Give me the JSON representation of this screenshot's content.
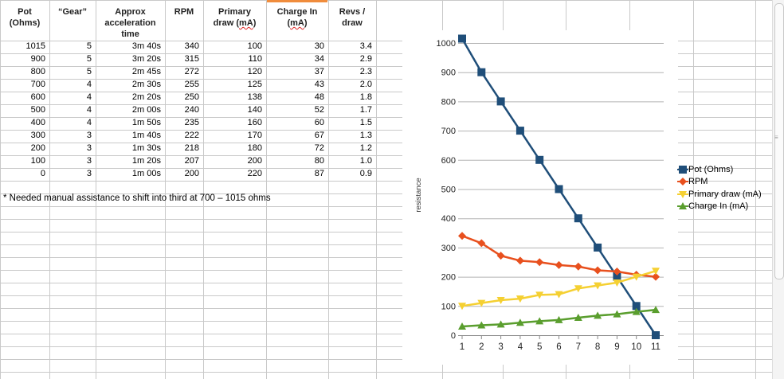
{
  "table": {
    "headers": [
      {
        "lines": [
          "Pot",
          "(Ohms)"
        ]
      },
      {
        "lines": [
          "“Gear”"
        ]
      },
      {
        "lines": [
          "Approx",
          "acceleration",
          "time"
        ]
      },
      {
        "lines": [
          "RPM"
        ]
      },
      {
        "lines": [
          "Primary",
          "draw (mA)"
        ]
      },
      {
        "lines": [
          "Charge In",
          "(mA)"
        ]
      },
      {
        "lines": [
          "Revs /",
          "draw"
        ]
      }
    ],
    "rows": [
      [
        "1015",
        "5",
        "3m 40s",
        "340",
        "100",
        "30",
        "3.4"
      ],
      [
        "900",
        "5",
        "3m 20s",
        "315",
        "110",
        "34",
        "2.9"
      ],
      [
        "800",
        "5",
        "2m 45s",
        "272",
        "120",
        "37",
        "2.3"
      ],
      [
        "700",
        "4",
        "2m 30s",
        "255",
        "125",
        "43",
        "2.0"
      ],
      [
        "600",
        "4",
        "2m 20s",
        "250",
        "138",
        "48",
        "1.8"
      ],
      [
        "500",
        "4",
        "2m 00s",
        "240",
        "140",
        "52",
        "1.7"
      ],
      [
        "400",
        "4",
        "1m 50s",
        "235",
        "160",
        "60",
        "1.5"
      ],
      [
        "300",
        "3",
        "1m 40s",
        "222",
        "170",
        "67",
        "1.3"
      ],
      [
        "200",
        "3",
        "1m 30s",
        "218",
        "180",
        "72",
        "1.2"
      ],
      [
        "100",
        "3",
        "1m 20s",
        "207",
        "200",
        "80",
        "1.0"
      ],
      [
        "0",
        "3",
        "1m 00s",
        "200",
        "220",
        "87",
        "0.9"
      ]
    ],
    "note": "* Needed manual assistance to shift into third at 700 – 1015 ohms"
  },
  "chart_data": {
    "type": "line",
    "x": [
      1,
      2,
      3,
      4,
      5,
      6,
      7,
      8,
      9,
      10,
      11
    ],
    "xlabel": "",
    "ylabel": "resistance",
    "ylim": [
      0,
      1000
    ],
    "yticks": [
      0,
      100,
      200,
      300,
      400,
      500,
      600,
      700,
      800,
      900,
      1000
    ],
    "grid": true,
    "legend_position": "right",
    "series": [
      {
        "name": "Pot (Ohms)",
        "color": "#1f4e79",
        "marker": "square",
        "values": [
          1015,
          900,
          800,
          700,
          600,
          500,
          400,
          300,
          200,
          100,
          0
        ]
      },
      {
        "name": "RPM",
        "color": "#e8501e",
        "marker": "diamond",
        "values": [
          340,
          315,
          272,
          255,
          250,
          240,
          235,
          222,
          218,
          207,
          200
        ]
      },
      {
        "name": "Primary draw (mA)",
        "color": "#f5d032",
        "marker": "triangle-down",
        "values": [
          100,
          110,
          120,
          125,
          138,
          140,
          160,
          170,
          180,
          200,
          220
        ]
      },
      {
        "name": "Charge In (mA)",
        "color": "#5a9e2e",
        "marker": "triangle-up",
        "values": [
          30,
          34,
          37,
          43,
          48,
          52,
          60,
          67,
          72,
          80,
          87
        ]
      }
    ]
  }
}
